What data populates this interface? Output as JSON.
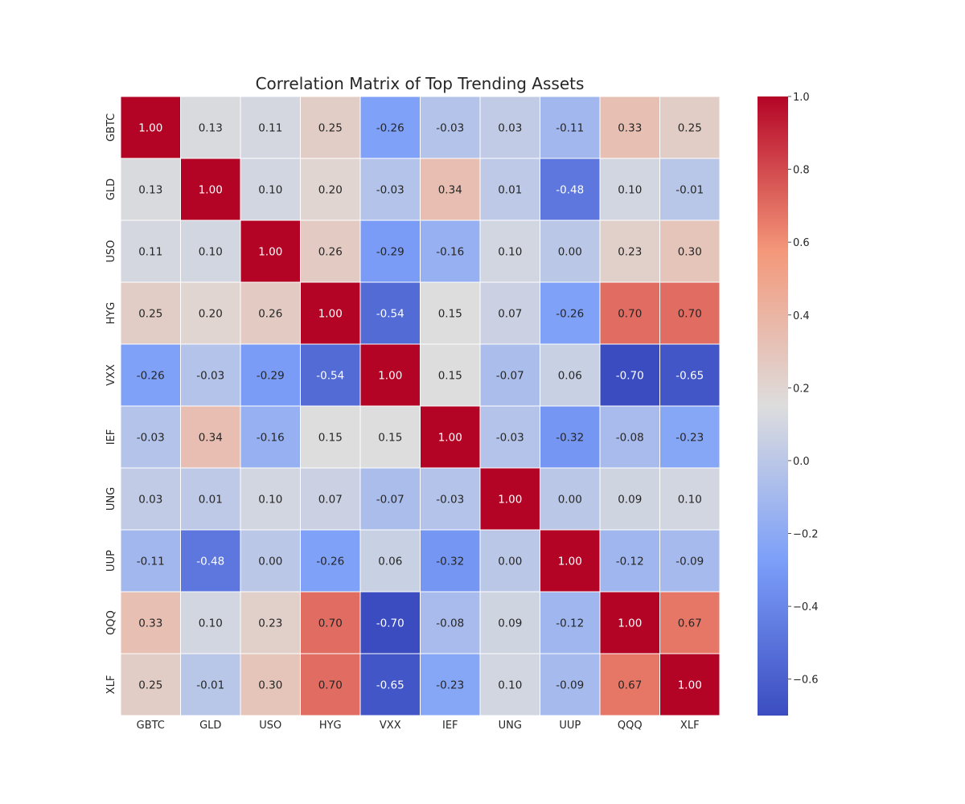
{
  "chart_data": {
    "type": "heatmap",
    "title": "Correlation Matrix of Top Trending Assets",
    "xlabel": "",
    "ylabel": "",
    "x_categories": [
      "GBTC",
      "GLD",
      "USO",
      "HYG",
      "VXX",
      "IEF",
      "UNG",
      "UUP",
      "QQQ",
      "XLF"
    ],
    "y_categories": [
      "GBTC",
      "GLD",
      "USO",
      "HYG",
      "VXX",
      "IEF",
      "UNG",
      "UUP",
      "QQQ",
      "XLF"
    ],
    "values": [
      [
        1.0,
        0.13,
        0.11,
        0.25,
        -0.26,
        -0.03,
        0.03,
        -0.11,
        0.33,
        0.25
      ],
      [
        0.13,
        1.0,
        0.1,
        0.2,
        -0.03,
        0.34,
        0.01,
        -0.48,
        0.1,
        -0.01
      ],
      [
        0.11,
        0.1,
        1.0,
        0.26,
        -0.29,
        -0.16,
        0.1,
        -0.0,
        0.23,
        0.3
      ],
      [
        0.25,
        0.2,
        0.26,
        1.0,
        -0.54,
        0.15,
        0.07,
        -0.26,
        0.7,
        0.7
      ],
      [
        -0.26,
        -0.03,
        -0.29,
        -0.54,
        1.0,
        0.15,
        -0.07,
        0.06,
        -0.7,
        -0.65
      ],
      [
        -0.03,
        0.34,
        -0.16,
        0.15,
        0.15,
        1.0,
        -0.03,
        -0.32,
        -0.08,
        -0.23
      ],
      [
        0.03,
        0.01,
        0.1,
        0.07,
        -0.07,
        -0.03,
        1.0,
        -0.0,
        0.09,
        0.1
      ],
      [
        -0.11,
        -0.48,
        -0.0,
        -0.26,
        0.06,
        -0.32,
        -0.0,
        1.0,
        -0.12,
        -0.09
      ],
      [
        0.33,
        0.1,
        0.23,
        0.7,
        -0.7,
        -0.08,
        0.09,
        -0.12,
        1.0,
        0.67
      ],
      [
        0.25,
        -0.01,
        0.3,
        0.7,
        -0.65,
        -0.23,
        0.1,
        -0.09,
        0.67,
        1.0
      ]
    ],
    "annotation_format": "0.00",
    "colormap": "coolwarm",
    "color_range": [
      -0.7,
      1.0
    ],
    "colorbar": {
      "ticks": [
        1.0,
        0.8,
        0.6,
        0.4,
        0.2,
        0.0,
        -0.2,
        -0.4,
        -0.6
      ],
      "tick_labels": [
        "1.0",
        "0.8",
        "0.6",
        "0.4",
        "0.2",
        "0.0",
        "−0.2",
        "−0.4",
        "−0.6"
      ],
      "placement": "right"
    }
  }
}
